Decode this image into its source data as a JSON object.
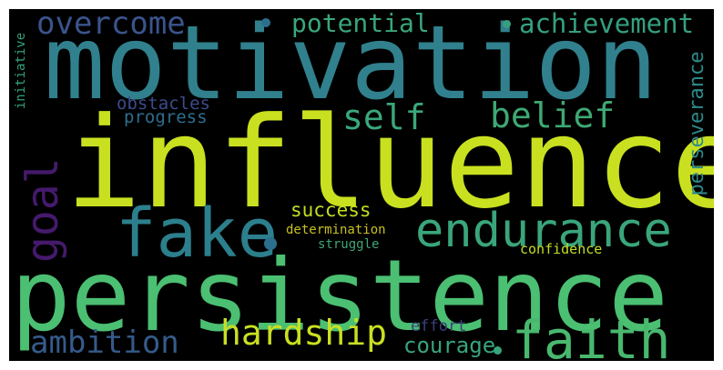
{
  "words": [
    {
      "text": "motivation",
      "color": "#31808d"
    },
    {
      "text": "influence",
      "color": "#c9e020"
    },
    {
      "text": "persistence",
      "color": "#4bbf72"
    },
    {
      "text": "fake",
      "color": "#2c7f8c"
    },
    {
      "text": "endurance",
      "color": "#3aa57b"
    },
    {
      "text": "faith",
      "color": "#48b86f"
    },
    {
      "text": "goal",
      "color": "#451a6c"
    },
    {
      "text": "overcome",
      "color": "#3a548c"
    },
    {
      "text": "potential",
      "color": "#3aa67b"
    },
    {
      "text": "achievement",
      "color": "#34a07f"
    },
    {
      "text": "self",
      "color": "#39a87b"
    },
    {
      "text": "belief",
      "color": "#3ea873"
    },
    {
      "text": "obstacles",
      "color": "#3c4c8a"
    },
    {
      "text": "progress",
      "color": "#2f6e8e"
    },
    {
      "text": "perseverance",
      "color": "#2e8a8a"
    },
    {
      "text": "initiative",
      "color": "#2fa07d"
    },
    {
      "text": "success",
      "color": "#c3de20"
    },
    {
      "text": "determination",
      "color": "#c8c020"
    },
    {
      "text": "struggle",
      "color": "#3fa677"
    },
    {
      "text": "confidence",
      "color": "#c3de20"
    },
    {
      "text": "ambition",
      "color": "#355b8b"
    },
    {
      "text": "hardship",
      "color": "#c9df22"
    },
    {
      "text": "courage",
      "color": "#38a47c"
    },
    {
      "text": "effort",
      "color": "#39407f"
    }
  ]
}
